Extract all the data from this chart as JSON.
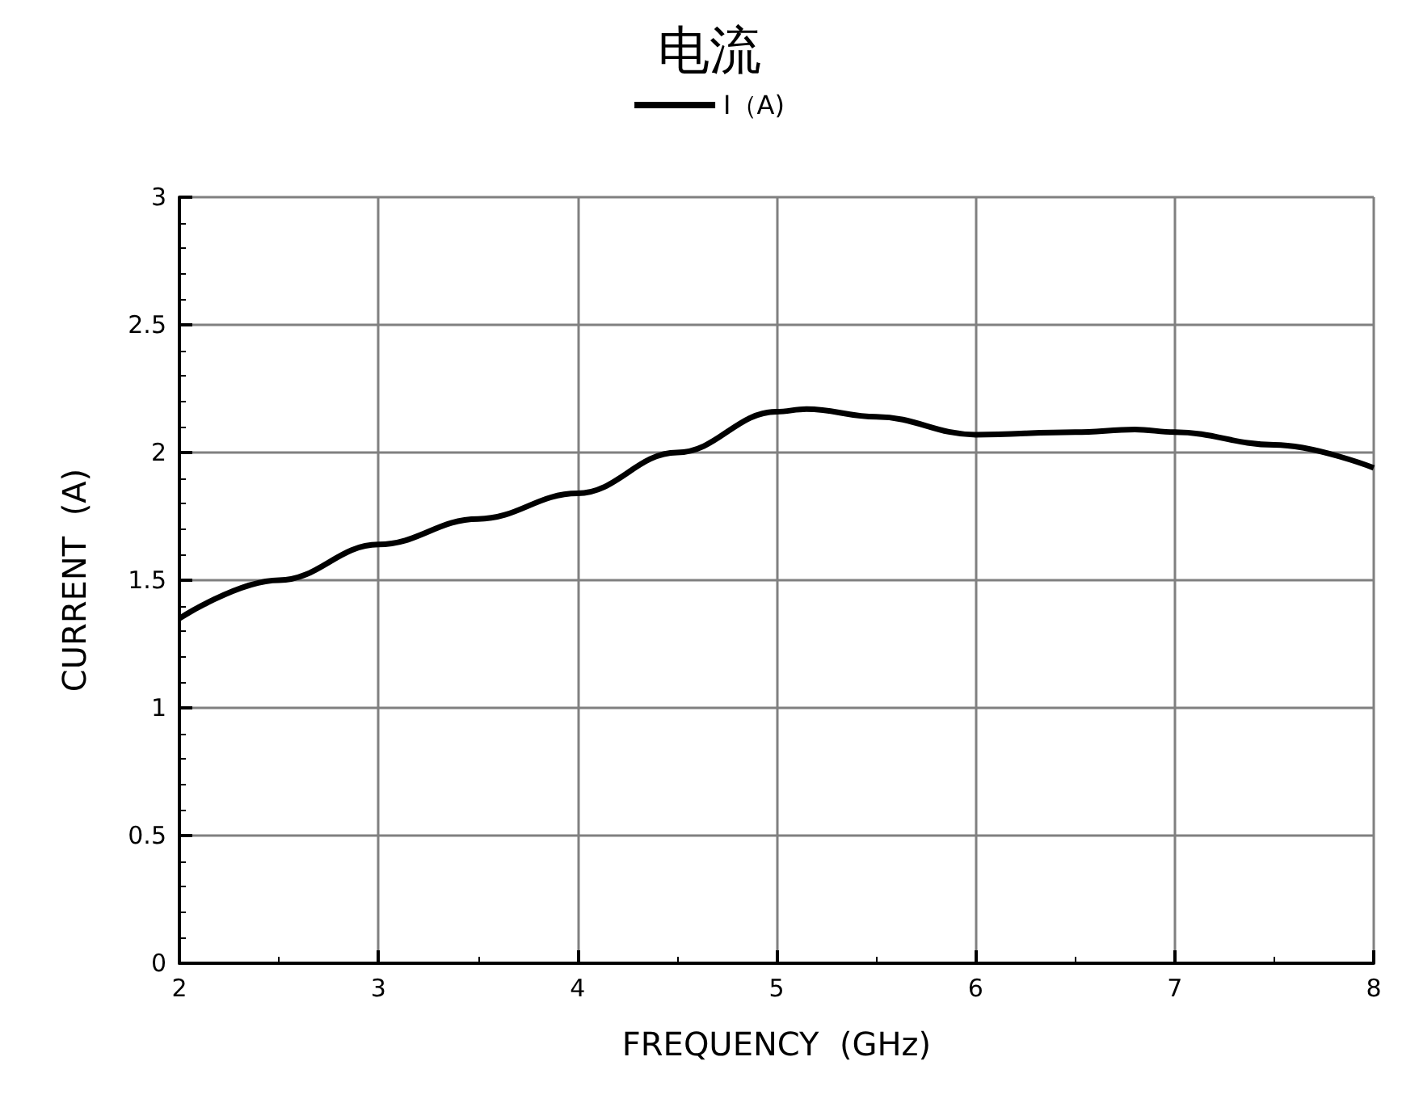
{
  "chart_data": {
    "type": "line",
    "title": "电流",
    "xlabel": "FREQUENCY  (GHz)",
    "ylabel": "CURRENT  (A)",
    "x": [
      2,
      2.5,
      3,
      3.5,
      4,
      4.5,
      5,
      5.15,
      5.5,
      6,
      6.5,
      6.8,
      7,
      7.5,
      8
    ],
    "series": [
      {
        "name": "I（A)",
        "color": "#000000",
        "values": [
          1.35,
          1.5,
          1.64,
          1.74,
          1.84,
          2.0,
          2.16,
          2.17,
          2.14,
          2.07,
          2.08,
          2.09,
          2.08,
          2.03,
          1.94
        ]
      }
    ],
    "xlim": [
      2,
      8
    ],
    "xticks": [
      2,
      3,
      4,
      5,
      6,
      7,
      8
    ],
    "ylim": [
      0,
      3
    ],
    "yticks": [
      0,
      0.5,
      1,
      1.5,
      2,
      2.5,
      3
    ],
    "grid": true,
    "legend": "top",
    "marker": "none",
    "line_style": "solid"
  }
}
